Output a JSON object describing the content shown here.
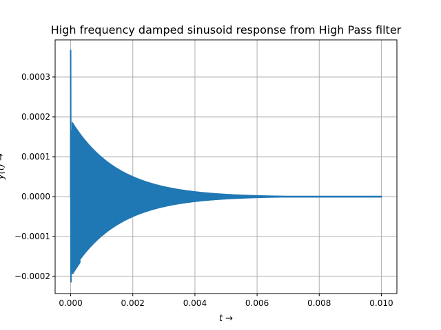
{
  "chart_data": {
    "type": "line",
    "title": "High frequency damped sinusoid response from High Pass filter",
    "xlabel": "t →",
    "ylabel": "y(t) →",
    "xlim": [
      -0.0005,
      0.0105
    ],
    "ylim": [
      -0.000243,
      0.000393
    ],
    "x_ticks": [
      0.0,
      0.002,
      0.004,
      0.006,
      0.008,
      0.01
    ],
    "x_tick_labels": [
      "0.000",
      "0.002",
      "0.004",
      "0.006",
      "0.008",
      "0.010"
    ],
    "y_ticks": [
      -0.0002,
      -0.0001,
      0.0,
      0.0001,
      0.0002,
      0.0003
    ],
    "y_tick_labels": [
      "−0.0002",
      "−0.0001",
      "0.0000",
      "0.0001",
      "0.0002",
      "0.0003"
    ],
    "grid": true,
    "series": [
      {
        "color": "#1f77b4",
        "description_values": {
          "t_start": 0.0,
          "t_end": 0.01,
          "initial_spike_max": 0.000368,
          "initial_min": -0.000215,
          "envelope_peak": 0.000187,
          "envelope_peak_t": 5e-05,
          "decay_tau": 0.0015,
          "final_amplitude": 2e-06
        }
      }
    ]
  }
}
